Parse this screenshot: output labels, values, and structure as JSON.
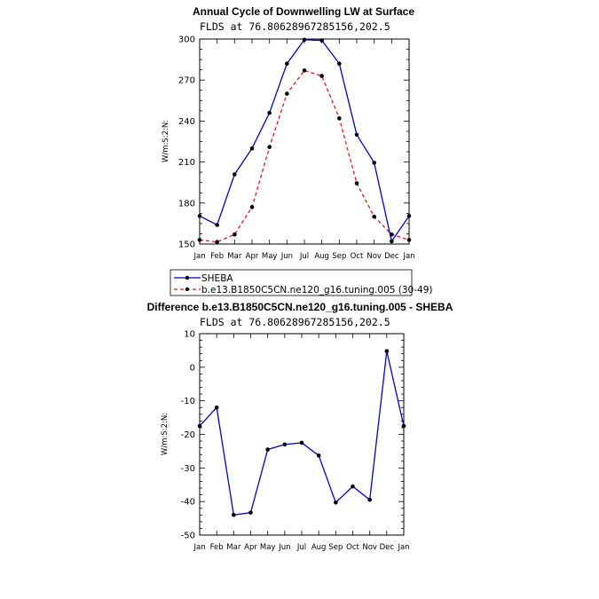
{
  "chart_data": [
    {
      "type": "line",
      "title": "Annual Cycle of Downwelling LW at Surface",
      "subtitle": "FLDS at 76.80628967285156,202.5",
      "ylabel": "W/m:S:2:N:",
      "xlabel": "",
      "categories": [
        "Jan",
        "Feb",
        "Mar",
        "Apr",
        "May",
        "Jun",
        "Jul",
        "Aug",
        "Sep",
        "Oct",
        "Nov",
        "Dec",
        "Jan"
      ],
      "ylim": [
        150,
        300
      ],
      "yticks": [
        150,
        180,
        210,
        240,
        270,
        300
      ],
      "series": [
        {
          "name": "SHEBA",
          "color": "#0000cc",
          "style": "solid",
          "values": [
            170.5,
            164,
            201,
            220,
            246,
            282,
            299.5,
            299,
            282,
            230,
            209.5,
            152,
            170.5
          ]
        },
        {
          "name": "b.e13.B1850C5CN.ne120_g16.tuning.005 (30-49)",
          "color": "#e01a1a",
          "style": "dashed",
          "values": [
            153,
            151.5,
            157,
            177,
            221,
            260,
            277,
            273,
            242,
            194.5,
            170,
            157,
            153
          ]
        }
      ],
      "legend": "below"
    },
    {
      "type": "line",
      "title": "Difference b.e13.B1850C5CN.ne120_g16.tuning.005 - SHEBA",
      "subtitle": "FLDS at 76.80628967285156,202.5",
      "ylabel": "W/m:S:2:N:",
      "xlabel": "",
      "categories": [
        "Jan",
        "Feb",
        "Mar",
        "Apr",
        "May",
        "Jun",
        "Jul",
        "Aug",
        "Sep",
        "Oct",
        "Nov",
        "Dec",
        "Jan"
      ],
      "ylim": [
        -50,
        10
      ],
      "yticks": [
        -50,
        -40,
        -30,
        -20,
        -10,
        0,
        10
      ],
      "series": [
        {
          "color": "#0000cc",
          "style": "solid",
          "values": [
            -17.5,
            -12,
            -44,
            -43.3,
            -24.5,
            -23,
            -22.5,
            -26.3,
            -40.3,
            -35.5,
            -39.5,
            4.8,
            -17.5
          ]
        }
      ]
    }
  ]
}
